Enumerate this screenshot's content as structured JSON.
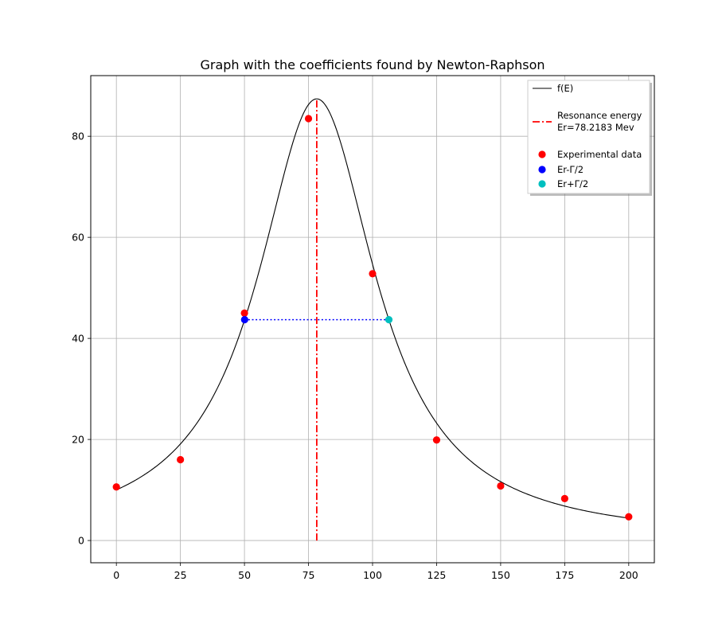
{
  "chart_data": {
    "type": "scatter",
    "title": "Graph with the coefficients found by Newton-Raphson",
    "xlabel": "",
    "ylabel": "",
    "xlim": [
      -10,
      210
    ],
    "ylim": [
      -4.4,
      92
    ],
    "x_ticks": [
      0,
      25,
      50,
      75,
      100,
      125,
      150,
      175,
      200
    ],
    "y_ticks": [
      0,
      20,
      40,
      60,
      80
    ],
    "grid": true,
    "legend_position": "top-right",
    "fit_params": {
      "Er": 78.2183,
      "gamma": 56.3,
      "peak": 87.4
    },
    "series": [
      {
        "name": "f(E)",
        "kind": "line",
        "color": "#000000",
        "x_range": [
          0,
          200
        ]
      },
      {
        "name": "Resonance energy",
        "name_line2": "Er=78.2183 Mev",
        "kind": "vline",
        "x": 78.2183,
        "y_range": [
          0,
          87.4
        ],
        "color": "#ff0000"
      },
      {
        "name": "Experimental data",
        "kind": "points",
        "color": "#ff0000",
        "x": [
          0,
          25,
          50,
          75,
          100,
          125,
          150,
          175,
          200
        ],
        "y": [
          10.6,
          16.0,
          45.0,
          83.5,
          52.8,
          19.9,
          10.8,
          8.3,
          4.7
        ]
      },
      {
        "name": "Er-Γ/2",
        "kind": "point",
        "color": "#0000ff",
        "x": 50.07,
        "y": 43.7
      },
      {
        "name": "Er+Γ/2",
        "kind": "point",
        "color": "#00bfbf",
        "x": 106.37,
        "y": 43.7
      }
    ],
    "width_line": {
      "x": [
        50.07,
        106.37
      ],
      "y": 43.7,
      "color": "#0000ff",
      "style": "dotted"
    }
  }
}
